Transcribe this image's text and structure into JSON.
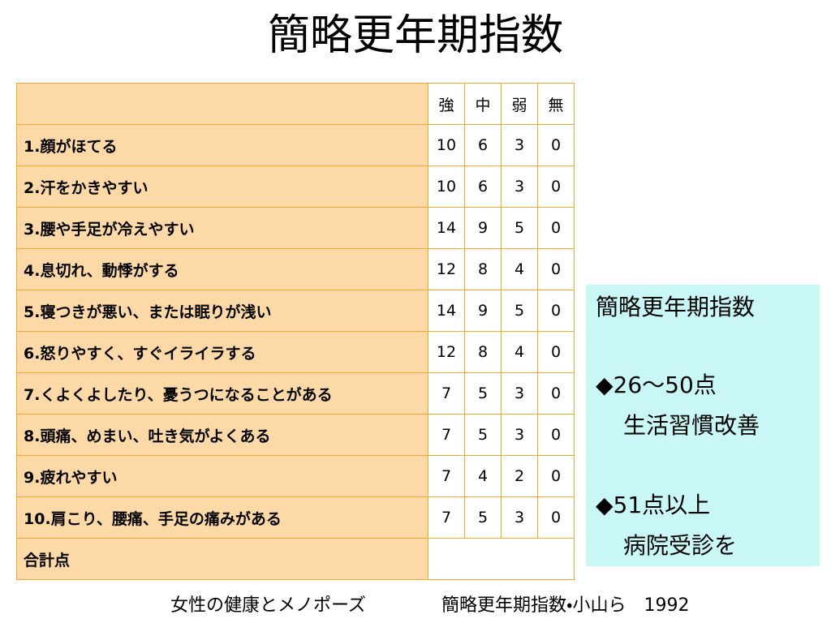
{
  "title": "簡略更年期指数",
  "table": {
    "header": [
      "強",
      "中",
      "弱",
      "無"
    ],
    "rows": [
      {
        "label": "1.顔がほてる",
        "values": [
          10,
          6,
          3,
          0
        ]
      },
      {
        "label": "2.汗をかきやすい",
        "values": [
          10,
          6,
          3,
          0
        ]
      },
      {
        "label": "3.腰や手足が冷えやすい",
        "values": [
          14,
          9,
          5,
          0
        ]
      },
      {
        "label": "4.息切れ、動悸がする",
        "values": [
          12,
          8,
          4,
          0
        ]
      },
      {
        "label": "5.寝つきが悪い、または眠りが浅い",
        "values": [
          14,
          9,
          5,
          0
        ]
      },
      {
        "label": "6.怒りやすく、すぐイライラする",
        "values": [
          12,
          8,
          4,
          0
        ]
      },
      {
        "label": "7.くよくよしたり、憂うつになることがある",
        "values": [
          7,
          5,
          3,
          0
        ]
      },
      {
        "label": "8.頭痛、めまい、吐き気がよくある",
        "values": [
          7,
          5,
          3,
          0
        ]
      },
      {
        "label": "9.疲れやすい",
        "values": [
          7,
          4,
          2,
          0
        ]
      },
      {
        "label": "10.肩こり、腰痛、手足の痛みがある",
        "values": [
          7,
          5,
          3,
          0
        ]
      }
    ],
    "total_label": "合計点"
  },
  "side_box": {
    "title": "簡略更年期指数",
    "items": [
      {
        "range": "◆26～50点",
        "advice": "生活習慣改善"
      },
      {
        "range": "◆51点以上",
        "advice": "病院受診を"
      }
    ]
  },
  "footer": {
    "source": "女性の健康とメノポーズ",
    "citation": "簡略更年期指数・小山ら　1992"
  }
}
